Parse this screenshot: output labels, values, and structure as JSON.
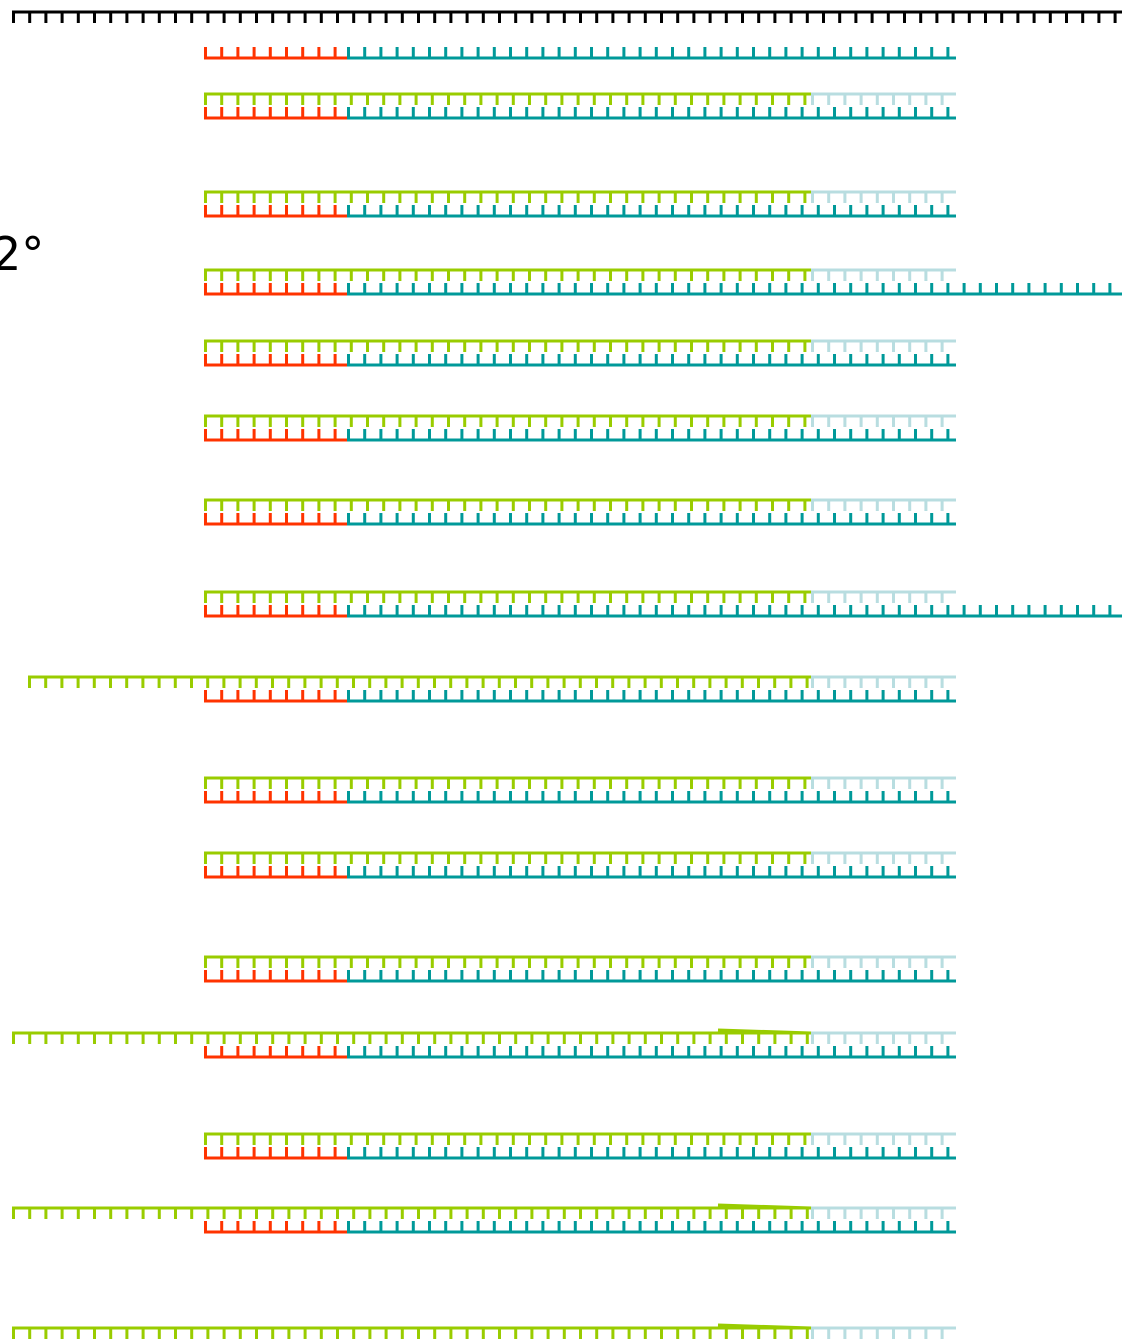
{
  "figure": {
    "label_text": "2°"
  },
  "colors": {
    "template": "#000000",
    "primer": "#ff3300",
    "extension": "#009999",
    "complement": "#99cc00",
    "complement_unpaired": "#b8dde0",
    "final_strand": "#333399"
  },
  "strand_legend": {
    "template": "template-strand",
    "primer": "primer-segment",
    "extension": "extension-segment",
    "complement": "complement-strand",
    "complement_unpaired": "unpaired-overhang",
    "final_strand": "final-strand"
  },
  "rows": [
    {
      "id": "row-1",
      "upper": null,
      "lower": "short"
    },
    {
      "id": "row-2",
      "upper": "normal",
      "lower": "short"
    },
    {
      "id": "row-3",
      "upper": "normal",
      "lower": "short"
    },
    {
      "id": "row-4",
      "upper": "normal",
      "lower": "long"
    },
    {
      "id": "row-5",
      "upper": "normal",
      "lower": "short"
    },
    {
      "id": "row-6",
      "upper": "normal",
      "lower": "short"
    },
    {
      "id": "row-7",
      "upper": "normal",
      "lower": "short"
    },
    {
      "id": "row-8",
      "upper": "normal",
      "lower": "long"
    },
    {
      "id": "row-9",
      "upper": "extended",
      "lower": "short"
    },
    {
      "id": "row-10",
      "upper": "normal",
      "lower": "short"
    },
    {
      "id": "row-11",
      "upper": "normal",
      "lower": "short"
    },
    {
      "id": "row-12",
      "upper": "normal",
      "lower": "short"
    },
    {
      "id": "row-13",
      "upper": "extended-kink",
      "lower": "short"
    },
    {
      "id": "row-14",
      "upper": "normal",
      "lower": "short"
    },
    {
      "id": "row-15",
      "upper": "extended-kink",
      "lower": "short"
    },
    {
      "id": "row-16",
      "upper": "extended-kink",
      "lower": "final"
    }
  ]
}
